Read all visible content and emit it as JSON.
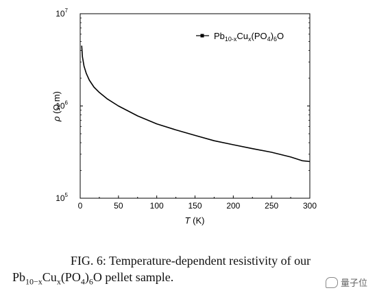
{
  "chart_data": {
    "type": "line",
    "yscale": "log",
    "xlim": [
      0,
      300
    ],
    "ylim": [
      100000,
      10000000
    ],
    "x_ticks": [
      0,
      50,
      100,
      150,
      200,
      250,
      300
    ],
    "y_ticks": [
      {
        "value": 100000,
        "base": "10",
        "exp": "5"
      },
      {
        "value": 1000000,
        "base": "10",
        "exp": "6"
      },
      {
        "value": 10000000,
        "base": "10",
        "exp": "7"
      }
    ],
    "xlabel": {
      "symbol": "T",
      "unit": " (K)"
    },
    "ylabel": {
      "symbol": "ρ",
      "unit": " (Ω m)"
    },
    "legend_position": "top-right",
    "series": [
      {
        "legend": {
          "base": "Pb",
          "sub1": "10-x",
          "mid": "Cu",
          "sub2": "x",
          "paren": "(PO",
          "sub3": "4",
          "close": ")",
          "sub4": "6",
          "end": "O"
        },
        "color": "#000000",
        "x": [
          2,
          3,
          5,
          8,
          12,
          18,
          25,
          35,
          50,
          75,
          100,
          125,
          150,
          175,
          200,
          225,
          250,
          275,
          290,
          300
        ],
        "y": [
          4500000,
          3400000,
          2700000,
          2250000,
          1900000,
          1600000,
          1400000,
          1200000,
          1000000,
          780000,
          640000,
          550000,
          480000,
          420000,
          380000,
          345000,
          315000,
          280000,
          255000,
          250000
        ]
      }
    ]
  },
  "caption": {
    "line1": "FIG. 6:  Temperature-dependent resistivity of our",
    "line2_prefix": "Pb",
    "line2_sub1": "10−x",
    "line2_mid": "Cu",
    "line2_sub2": "x",
    "line2_paren": "(PO",
    "line2_sub3": "4",
    "line2_close": ")",
    "line2_sub4": "6",
    "line2_suffix": "O pellet sample."
  },
  "watermark": {
    "text": "量子位",
    "icon": "wechat-icon"
  }
}
